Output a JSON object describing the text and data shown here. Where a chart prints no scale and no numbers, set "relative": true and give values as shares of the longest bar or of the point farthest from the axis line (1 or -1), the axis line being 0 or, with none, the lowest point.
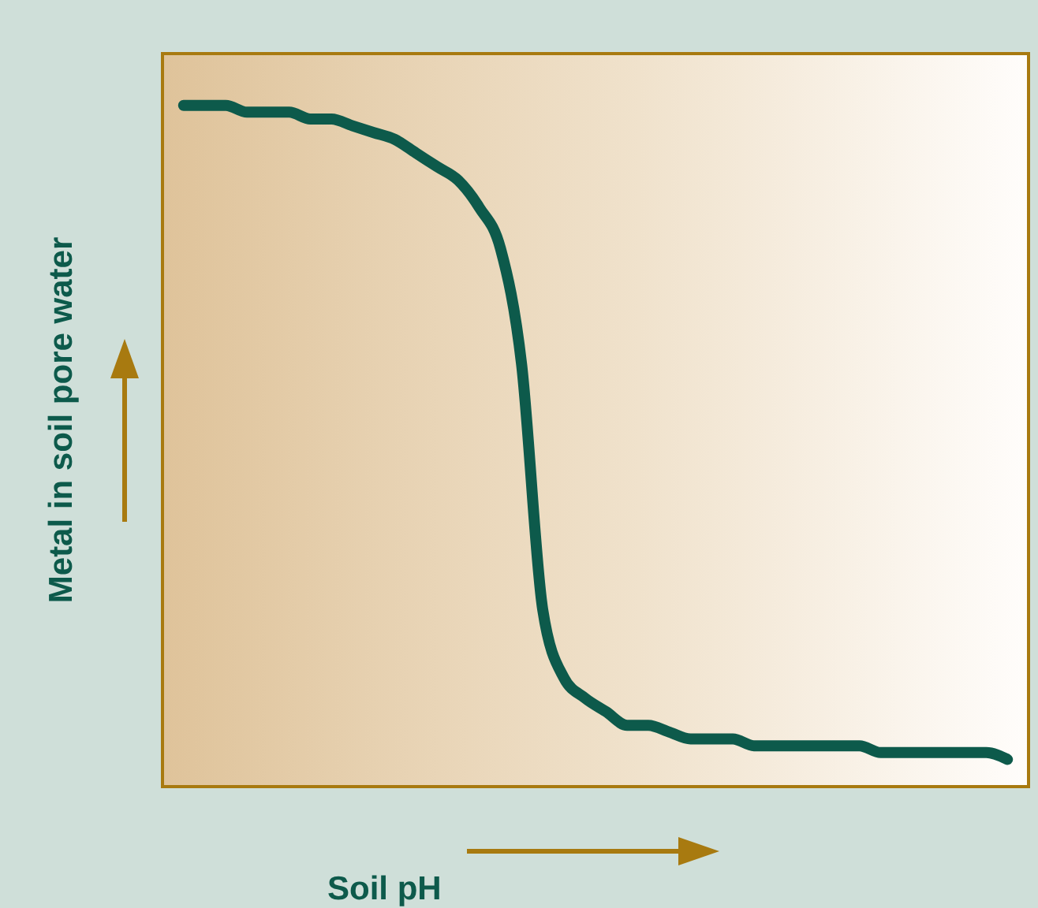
{
  "chart_data": {
    "type": "line",
    "relative": true,
    "xlabel": "Soil pH",
    "ylabel": "Metal in soil pore water",
    "categories": [
      null,
      null,
      null,
      null,
      null,
      null,
      null,
      null,
      null,
      null,
      null,
      null,
      null,
      null,
      null,
      null,
      null,
      null,
      null,
      null,
      null,
      null,
      null,
      null,
      null,
      null,
      null,
      null,
      null,
      null,
      null,
      null,
      null,
      null,
      null,
      null,
      null,
      null,
      null,
      null
    ],
    "series": [
      {
        "color": "#0d5a4b",
        "values": [
          1,
          1,
          1,
          0.99,
          0.99,
          0.99,
          0.98,
          0.98,
          0.97,
          0.96,
          0.95,
          0.93,
          0.91,
          0.89,
          0.85,
          0.79,
          0.62,
          0.26,
          0.16,
          0.13,
          0.11,
          0.09,
          0.09,
          0.08,
          0.07,
          0.07,
          0.07,
          0.06,
          0.06,
          0.06,
          0.06,
          0.06,
          0.06,
          0.05,
          0.05,
          0.05,
          0.05,
          0.05,
          0.05,
          0.04
        ]
      }
    ],
    "legend": false,
    "grid": false,
    "marker": "none",
    "line_style": "solid"
  }
}
